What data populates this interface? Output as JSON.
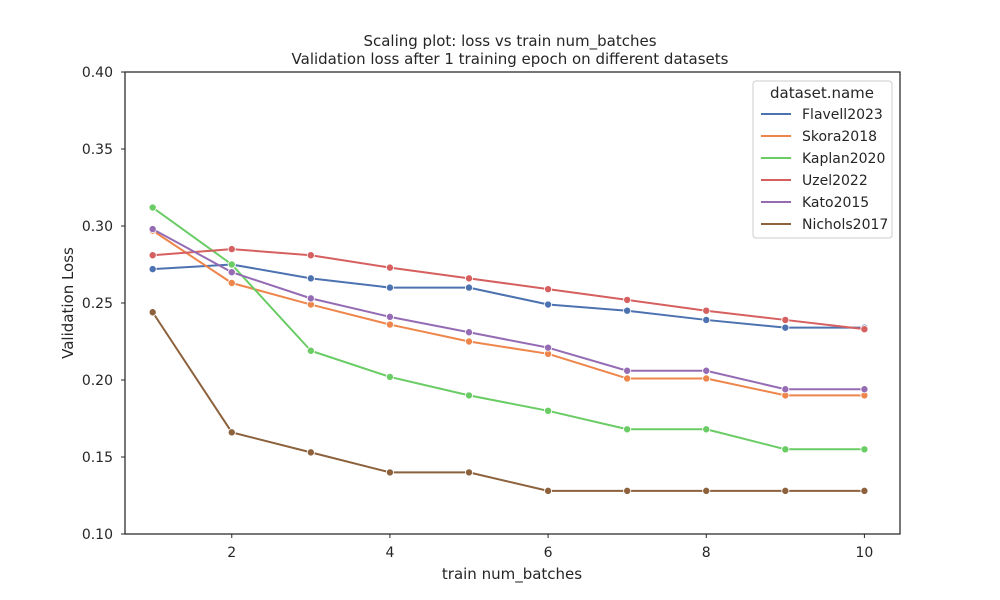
{
  "chart_data": {
    "type": "line",
    "title": "Scaling plot: loss vs train num_batches",
    "subtitle": "Validation loss after 1 training epoch on different datasets",
    "xlabel": "train num_batches",
    "ylabel": "Validation Loss",
    "xlim": [
      0.65,
      10.45
    ],
    "ylim": [
      0.1,
      0.4
    ],
    "xticks": [
      2,
      4,
      6,
      8,
      10
    ],
    "xtick_labels": [
      "2",
      "4",
      "6",
      "8",
      "10"
    ],
    "yticks": [
      0.1,
      0.15,
      0.2,
      0.25,
      0.3,
      0.35,
      0.4
    ],
    "ytick_labels": [
      "0.10",
      "0.15",
      "0.20",
      "0.25",
      "0.30",
      "0.35",
      "0.40"
    ],
    "grid": false,
    "legend": {
      "title": "dataset.name",
      "placement": "top-right"
    },
    "x": [
      1,
      2,
      3,
      4,
      5,
      6,
      7,
      8,
      9,
      10
    ],
    "series": [
      {
        "name": "Flavell2023",
        "color": "#4c72b0",
        "values": [
          0.272,
          0.275,
          0.266,
          0.26,
          0.26,
          0.249,
          0.245,
          0.239,
          0.234,
          0.234
        ]
      },
      {
        "name": "Skora2018",
        "color": "#ee854a",
        "values": [
          0.297,
          0.263,
          0.249,
          0.236,
          0.225,
          0.217,
          0.201,
          0.201,
          0.19,
          0.19
        ]
      },
      {
        "name": "Kaplan2020",
        "color": "#6acc64",
        "values": [
          0.312,
          0.275,
          0.219,
          0.202,
          0.19,
          0.18,
          0.168,
          0.168,
          0.155,
          0.155
        ]
      },
      {
        "name": "Uzel2022",
        "color": "#d65f5f",
        "values": [
          0.281,
          0.285,
          0.281,
          0.273,
          0.266,
          0.259,
          0.252,
          0.245,
          0.239,
          0.233
        ]
      },
      {
        "name": "Kato2015",
        "color": "#956cb4",
        "values": [
          0.298,
          0.27,
          0.253,
          0.241,
          0.231,
          0.221,
          0.206,
          0.206,
          0.194,
          0.194
        ]
      },
      {
        "name": "Nichols2017",
        "color": "#8c613c",
        "values": [
          0.244,
          0.166,
          0.153,
          0.14,
          0.14,
          0.128,
          0.128,
          0.128,
          0.128,
          0.128
        ]
      }
    ]
  }
}
